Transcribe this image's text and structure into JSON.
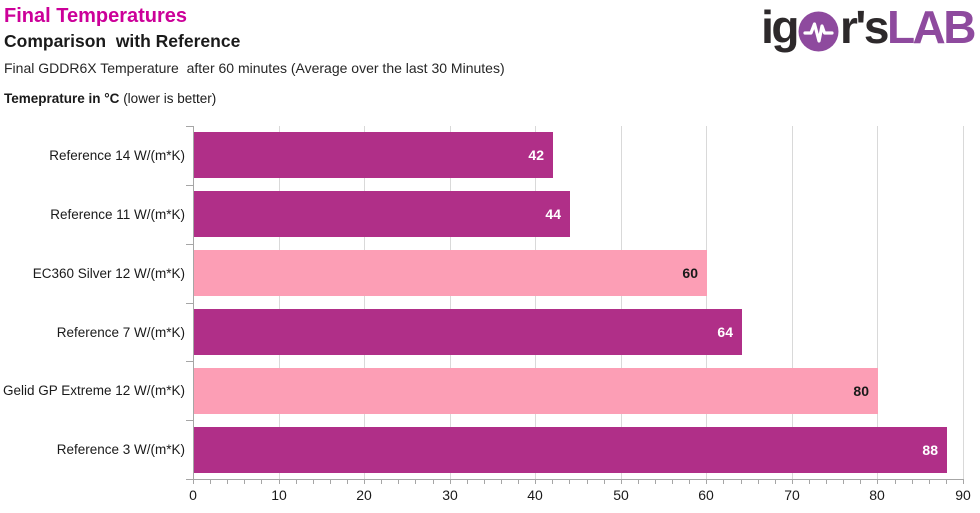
{
  "header": {
    "title": "Final Temperatures",
    "subtitle": "Comparison  with Reference",
    "description": "Final GDDR6X Temperature  after 60 minutes (Average over the last 30 Minutes)",
    "axis_note_bold": "Temeprature in °C",
    "axis_note_rest": " (lower is better)"
  },
  "logo": {
    "part1": "ig",
    "part2": "r's",
    "part3": "LAB",
    "dark_color": "#2d292b",
    "purple_color": "#8e4a9e",
    "icon": "pulse-in-circle"
  },
  "chart_data": {
    "type": "bar",
    "orientation": "horizontal",
    "title": "Final Temperatures",
    "subtitle": "Comparison with Reference",
    "value_axis_label": "Temperature in °C (lower is better)",
    "categories": [
      "Reference 14 W/(m*K)",
      "Reference 11 W/(m*K)",
      "EC360 Silver 12 W/(m*K)",
      "Reference 7 W/(m*K)",
      "Gelid GP Extreme 12 W/(m*K)",
      "Reference 3 W/(m*K)"
    ],
    "values": [
      42,
      44,
      60,
      64,
      80,
      88
    ],
    "bar_types": [
      "reference",
      "reference",
      "thirdparty",
      "reference",
      "thirdparty",
      "reference"
    ],
    "bar_colors": {
      "reference": "#b02f88",
      "thirdparty": "#fc9eb5"
    },
    "value_label_colors": {
      "reference": "#ffffff",
      "thirdparty": "#1a1a1a"
    },
    "xlim": [
      0,
      90
    ],
    "x_ticks": [
      0,
      10,
      20,
      30,
      40,
      50,
      60,
      70,
      80,
      90
    ],
    "minor_tick_step": 2,
    "gridlines": "vertical-major",
    "legend": "none"
  }
}
